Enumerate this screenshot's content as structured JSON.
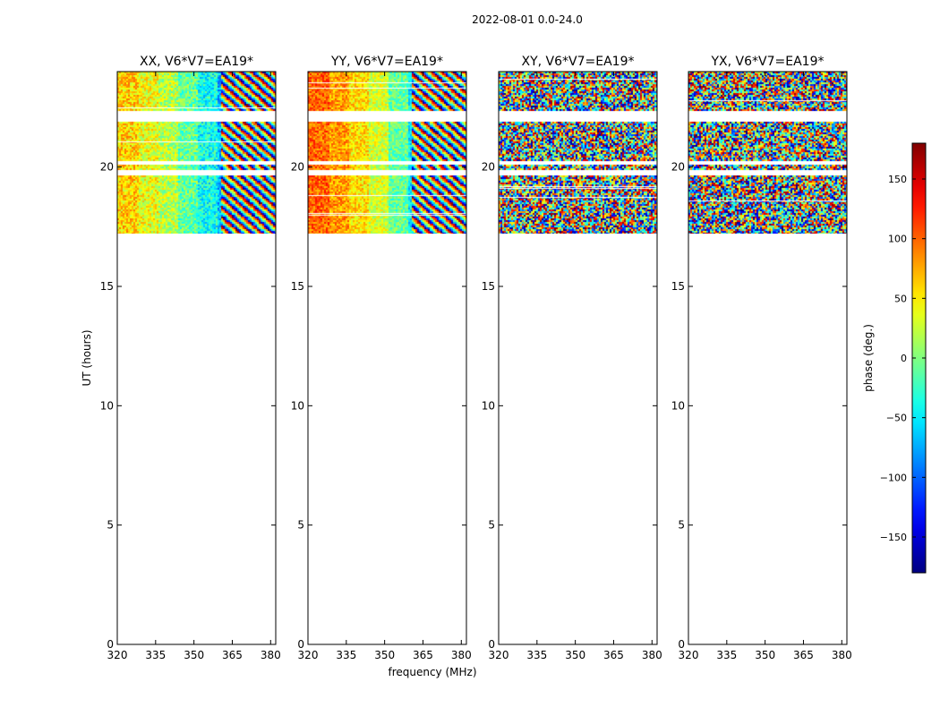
{
  "figure": {
    "suptitle": "2022-08-01 0.0-24.0"
  },
  "chart_data": {
    "type": "heatmap",
    "suptitle": "2022-08-01 0.0-24.0",
    "xlabel": "frequency (MHz)",
    "ylabel": "UT (hours)",
    "xlim": [
      320,
      382
    ],
    "ylim": [
      0,
      24
    ],
    "xticks": [
      320,
      335,
      350,
      365,
      380
    ],
    "yticks": [
      0,
      5,
      10,
      15,
      20
    ],
    "panels": [
      {
        "title": "XX, V6*V7=EA19*",
        "pol": "XX",
        "base_phase": [
          60,
          40,
          20,
          -10,
          -40,
          -70,
          -110,
          -140
        ],
        "coherent_until_mhz": 360,
        "noise_level": 0.35
      },
      {
        "title": "YY, V6*V7=EA19*",
        "pol": "YY",
        "base_phase": [
          100,
          80,
          55,
          30,
          -10,
          -50,
          -100,
          -150
        ],
        "coherent_until_mhz": 360,
        "noise_level": 0.3
      },
      {
        "title": "XY, V6*V7=EA19*",
        "pol": "XY",
        "base_phase": [
          0,
          0,
          0,
          0,
          0,
          0,
          0,
          0
        ],
        "coherent_until_mhz": 320,
        "noise_level": 1.0
      },
      {
        "title": "YX, V6*V7=EA19*",
        "pol": "YX",
        "base_phase": [
          0,
          0,
          0,
          0,
          0,
          0,
          0,
          0
        ],
        "coherent_until_mhz": 320,
        "noise_level": 1.0
      }
    ],
    "data_time_range_hours": [
      17.2,
      24.0
    ],
    "time_gaps_hours": [
      [
        21.9,
        22.4
      ],
      [
        20.1,
        20.3
      ],
      [
        19.7,
        19.9
      ]
    ],
    "colorbar": {
      "label": "phase (deg.)",
      "range": [
        -180,
        180
      ],
      "ticks": [
        -150,
        -100,
        -50,
        0,
        50,
        100,
        150
      ],
      "colormap": "jet"
    }
  }
}
